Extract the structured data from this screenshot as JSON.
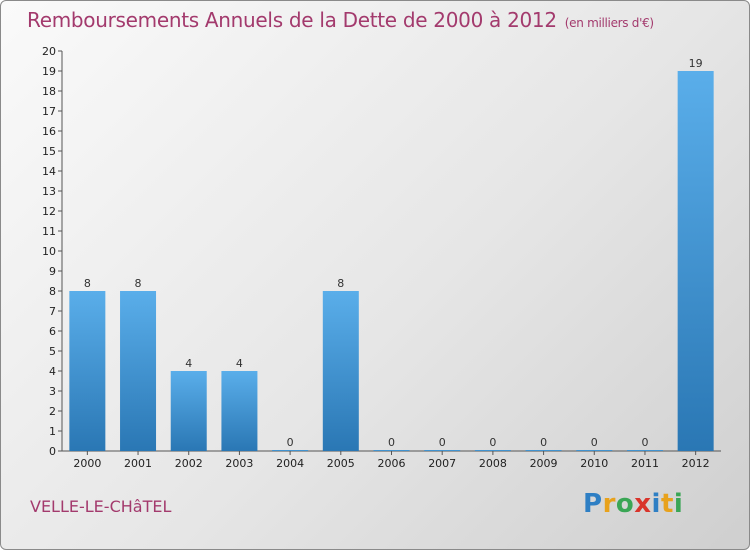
{
  "header": {
    "title": "Remboursements Annuels de la Dette de 2000 à 2012",
    "unit": "(en milliers d'€)"
  },
  "footer": {
    "town": "VELLE-LE-CHâTEL",
    "logo": {
      "letters": [
        "P",
        "r",
        "o",
        "x",
        "i",
        "t",
        "i"
      ],
      "colors": [
        "#2e7fc4",
        "#e8a21c",
        "#3aa655",
        "#d9342b",
        "#2e7fc4",
        "#e8a21c",
        "#3aa655"
      ]
    }
  },
  "colors": {
    "bar": "#3f93d6",
    "bar_light": "#5eb0ea",
    "title": "#a33a6d"
  },
  "chart_data": {
    "type": "bar",
    "title": "Remboursements Annuels de la Dette de 2000 à 2012",
    "xlabel": "",
    "ylabel": "",
    "categories": [
      "2000",
      "2001",
      "2002",
      "2003",
      "2004",
      "2005",
      "2006",
      "2007",
      "2008",
      "2009",
      "2010",
      "2011",
      "2012"
    ],
    "values": [
      8,
      8,
      4,
      4,
      0,
      8,
      0,
      0,
      0,
      0,
      0,
      0,
      19
    ],
    "ylim": [
      0,
      20
    ],
    "yticks": [
      0,
      1,
      2,
      3,
      4,
      5,
      6,
      7,
      8,
      9,
      10,
      11,
      12,
      13,
      14,
      15,
      16,
      17,
      18,
      19,
      20
    ],
    "grid": false,
    "legend": "none"
  }
}
